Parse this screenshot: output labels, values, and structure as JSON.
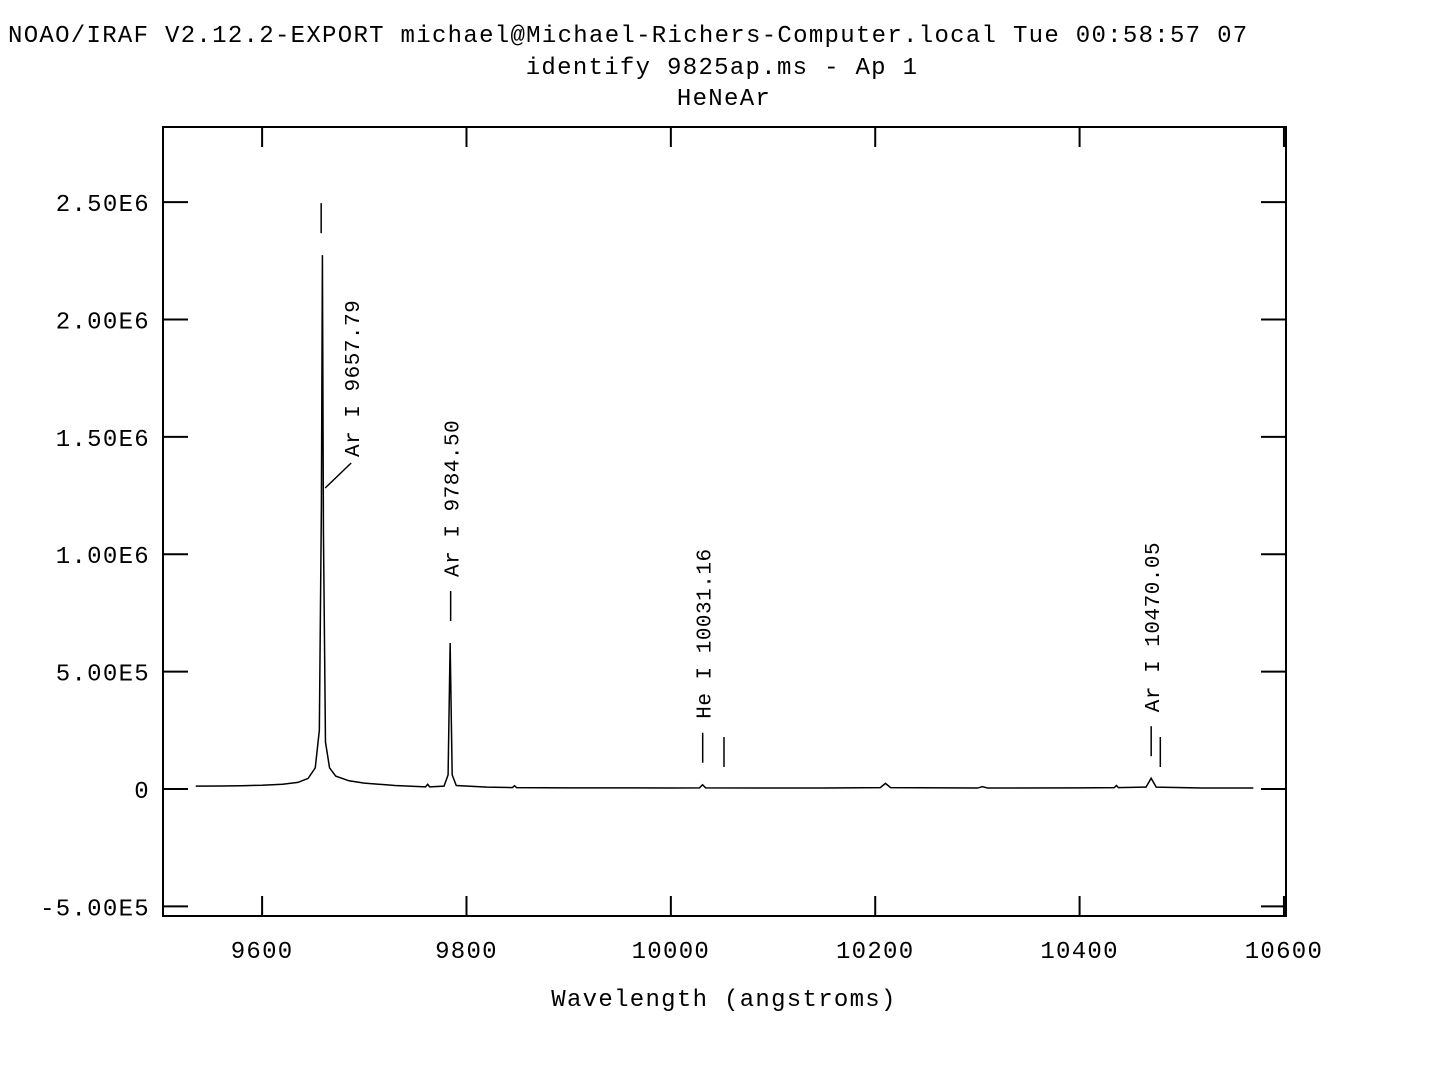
{
  "chart_data": {
    "type": "line",
    "header": "NOAO/IRAF V2.12.2-EXPORT michael@Michael-Richers-Computer.local Tue 00:58:57 07",
    "title": "identify 9825ap.ms - Ap 1",
    "subtitle": "HeNeAr",
    "xlabel": "Wavelength (angstroms)",
    "xlim": [
      9503,
      10602
    ],
    "ylim": [
      -541000,
      2820000
    ],
    "xticks": [
      9600,
      9800,
      10000,
      10200,
      10400,
      10600
    ],
    "yticks": [
      {
        "value": -500000,
        "label": "-5.00E5"
      },
      0,
      {
        "value": 500000,
        "label": "5.00E5"
      },
      {
        "value": 1000000,
        "label": "1.00E6"
      },
      {
        "value": 1500000,
        "label": "1.50E6"
      },
      {
        "value": 2000000,
        "label": "2.00E6"
      },
      {
        "value": 2500000,
        "label": "2.50E6"
      }
    ],
    "color": "#000000",
    "x": [
      9535,
      9560,
      9580,
      9600,
      9620,
      9635,
      9645,
      9652,
      9656,
      9658,
      9659,
      9660,
      9662,
      9666,
      9672,
      9685,
      9700,
      9730,
      9760,
      9762,
      9764,
      9778,
      9782,
      9784,
      9786,
      9790,
      9820,
      9845,
      9847,
      9849,
      9900,
      9950,
      10000,
      10028,
      10031,
      10034,
      10100,
      10150,
      10205,
      10210,
      10215,
      10300,
      10305,
      10310,
      10400,
      10434,
      10436,
      10438,
      10465,
      10470,
      10475,
      10520,
      10570
    ],
    "values": [
      12000,
      13000,
      14000,
      16000,
      20000,
      28000,
      45000,
      90000,
      250000,
      1200000,
      2274000,
      1100000,
      200000,
      90000,
      55000,
      35000,
      25000,
      15000,
      9000,
      20000,
      9000,
      12000,
      60000,
      622000,
      60000,
      15000,
      8000,
      6000,
      14000,
      6000,
      5000,
      5000,
      4000,
      5000,
      18000,
      5000,
      4000,
      4000,
      6000,
      24000,
      6000,
      4000,
      10000,
      4000,
      5000,
      6000,
      15000,
      6000,
      8000,
      46000,
      8000,
      4000,
      4000
    ],
    "features": [
      {
        "x": 9657.79,
        "label": "Ar I 9657.79"
      },
      {
        "x": 9784.5,
        "label": "Ar I 9784.50"
      },
      {
        "x": 10031.16,
        "label": "He I 10031.16"
      },
      {
        "x": 10470.05,
        "label": "Ar I 10470.05"
      }
    ],
    "unlabeled_features": [
      10052,
      10479
    ]
  }
}
